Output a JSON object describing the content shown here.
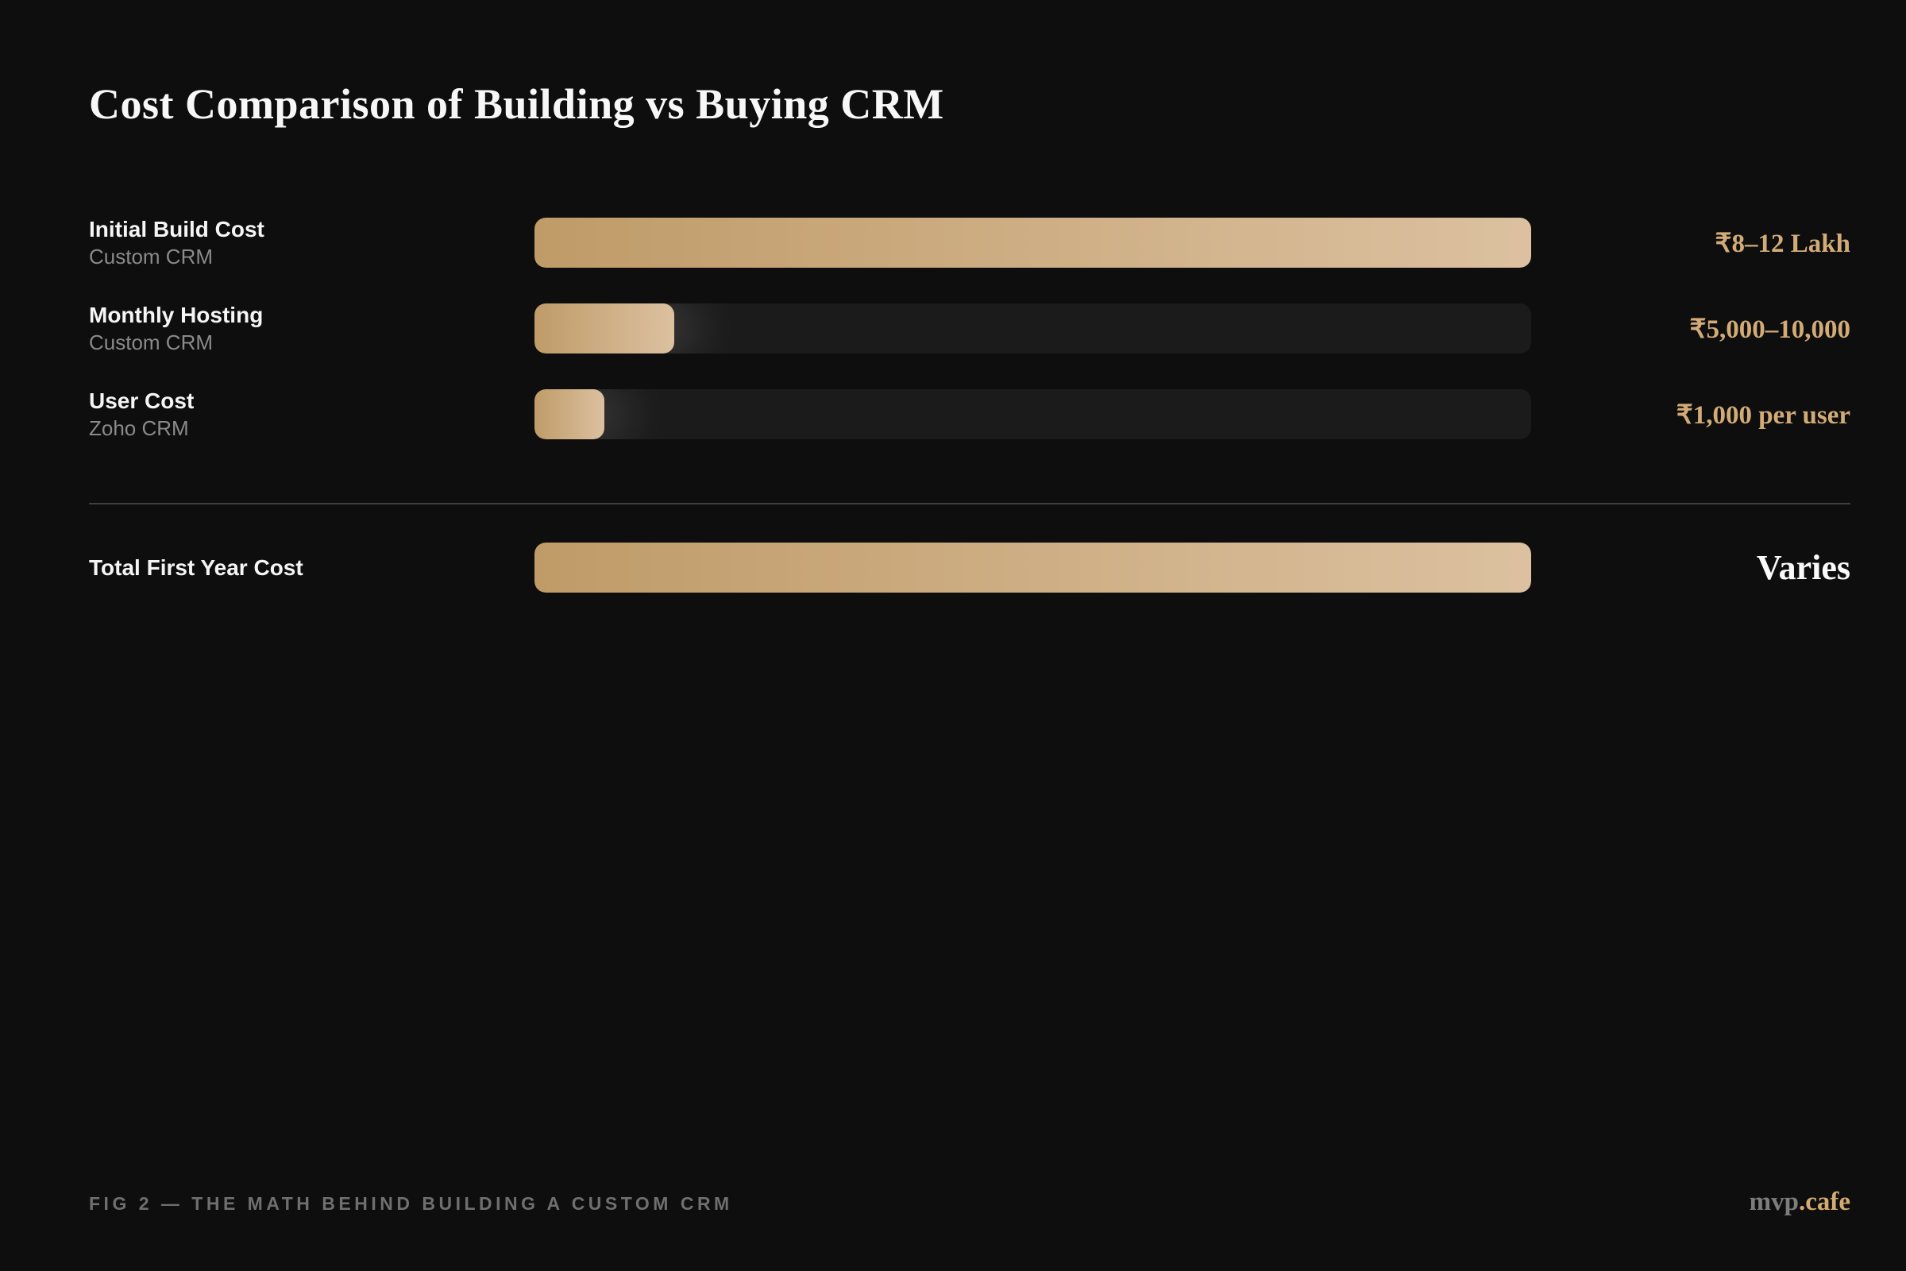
{
  "header": {
    "title": "Cost Comparison of Building vs Buying CRM"
  },
  "chart_data": {
    "type": "bar",
    "orientation": "horizontal",
    "title": "Cost Comparison of Building vs Buying CRM",
    "grid": false,
    "legend": "none",
    "bars": [
      {
        "label": "Initial Build Cost",
        "series": "Custom CRM",
        "value_text": "₹8–12 Lakh",
        "fill_percent": 100
      },
      {
        "label": "Monthly Hosting",
        "series": "Custom CRM",
        "value_text": "₹5,000–10,000",
        "fill_percent": 14
      },
      {
        "label": "User Cost",
        "series": "Zoho CRM",
        "value_text": "₹1,000 per user",
        "fill_percent": 7
      }
    ],
    "total_row": {
      "label": "Total First Year Cost",
      "value_text": "Varies",
      "fill_percent": 100
    }
  },
  "footer": {
    "caption": "FIG 2 — THE MATH BEHIND BUILDING A CUSTOM CRM",
    "brand_gray": "mvp",
    "brand_gold": ".cafe"
  },
  "colors": {
    "background": "#0e0e0f",
    "bar_gold_start": "#bf9b68",
    "bar_gold_end": "#dcc1a0",
    "bar_track": "#1b1b1c",
    "value_gold": "#d2ab76",
    "label_white": "#f5f5f5",
    "sublabel_gray": "#8a8a8a",
    "footer_gray": "#6f6f6f",
    "divider_gray": "#3e3e3e"
  }
}
